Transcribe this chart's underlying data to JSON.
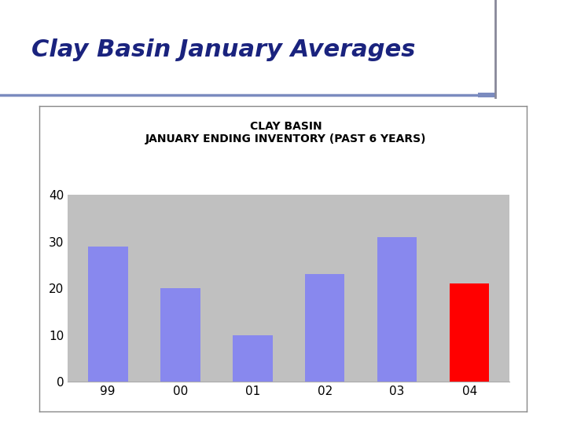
{
  "title_main": "Clay Basin January Averages",
  "chart_title_line1": "CLAY BASIN",
  "chart_title_line2": "JANUARY ENDING INVENTORY (PAST 6 YEARS)",
  "categories": [
    "99",
    "00",
    "01",
    "02",
    "03",
    "04"
  ],
  "values": [
    29,
    20,
    10,
    23,
    31,
    21
  ],
  "bar_colors": [
    "#8888ee",
    "#8888ee",
    "#8888ee",
    "#8888ee",
    "#8888ee",
    "#ff0000"
  ],
  "ylim": [
    0,
    40
  ],
  "yticks": [
    0,
    10,
    20,
    30,
    40
  ],
  "plot_bg_color": "#c0c0c0",
  "outer_bg_color": "#ffffff",
  "title_color": "#1a237e",
  "title_fontsize": 22,
  "chart_title_fontsize": 10,
  "tick_fontsize": 11,
  "bar_edge_color": "none",
  "bar_linewidth": 0.0,
  "line_color": "#7788bb",
  "box_border_color": "#888888"
}
